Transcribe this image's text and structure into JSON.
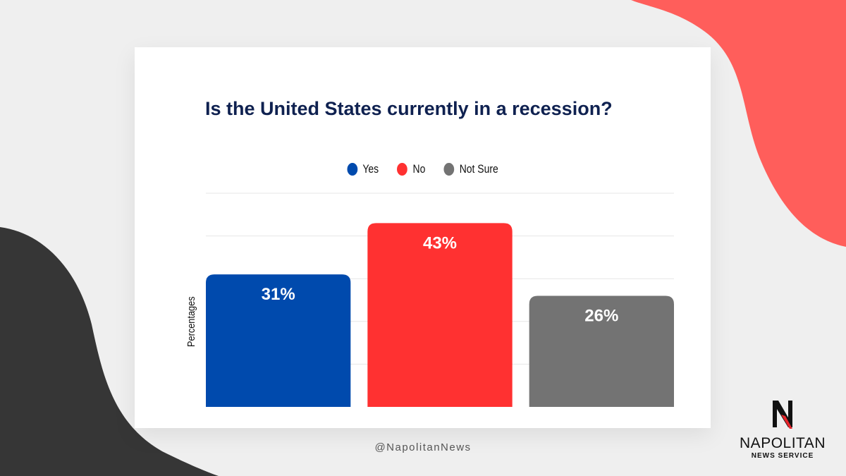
{
  "chart_data": {
    "type": "bar",
    "title": "Is the United States currently in a recession?",
    "categories": [
      "Yes",
      "No",
      "Not Sure"
    ],
    "values": [
      31,
      43,
      26
    ],
    "data_labels": [
      "31%",
      "43%",
      "26%"
    ],
    "colors": [
      "#004aad",
      "#ff3131",
      "#737373"
    ],
    "xlabel": "",
    "ylabel": "Percentages",
    "ylim": [
      0,
      50
    ],
    "grid": true,
    "legend": "top-center"
  },
  "footer": {
    "handle": "@NapolitanNews"
  },
  "logo": {
    "mark": "N",
    "name": "NAPOLITAN",
    "sub": "NEWS SERVICE"
  },
  "colors": {
    "background": "#efefef",
    "accent_red": "#ff5e5b",
    "dark_blob": "#363636"
  }
}
